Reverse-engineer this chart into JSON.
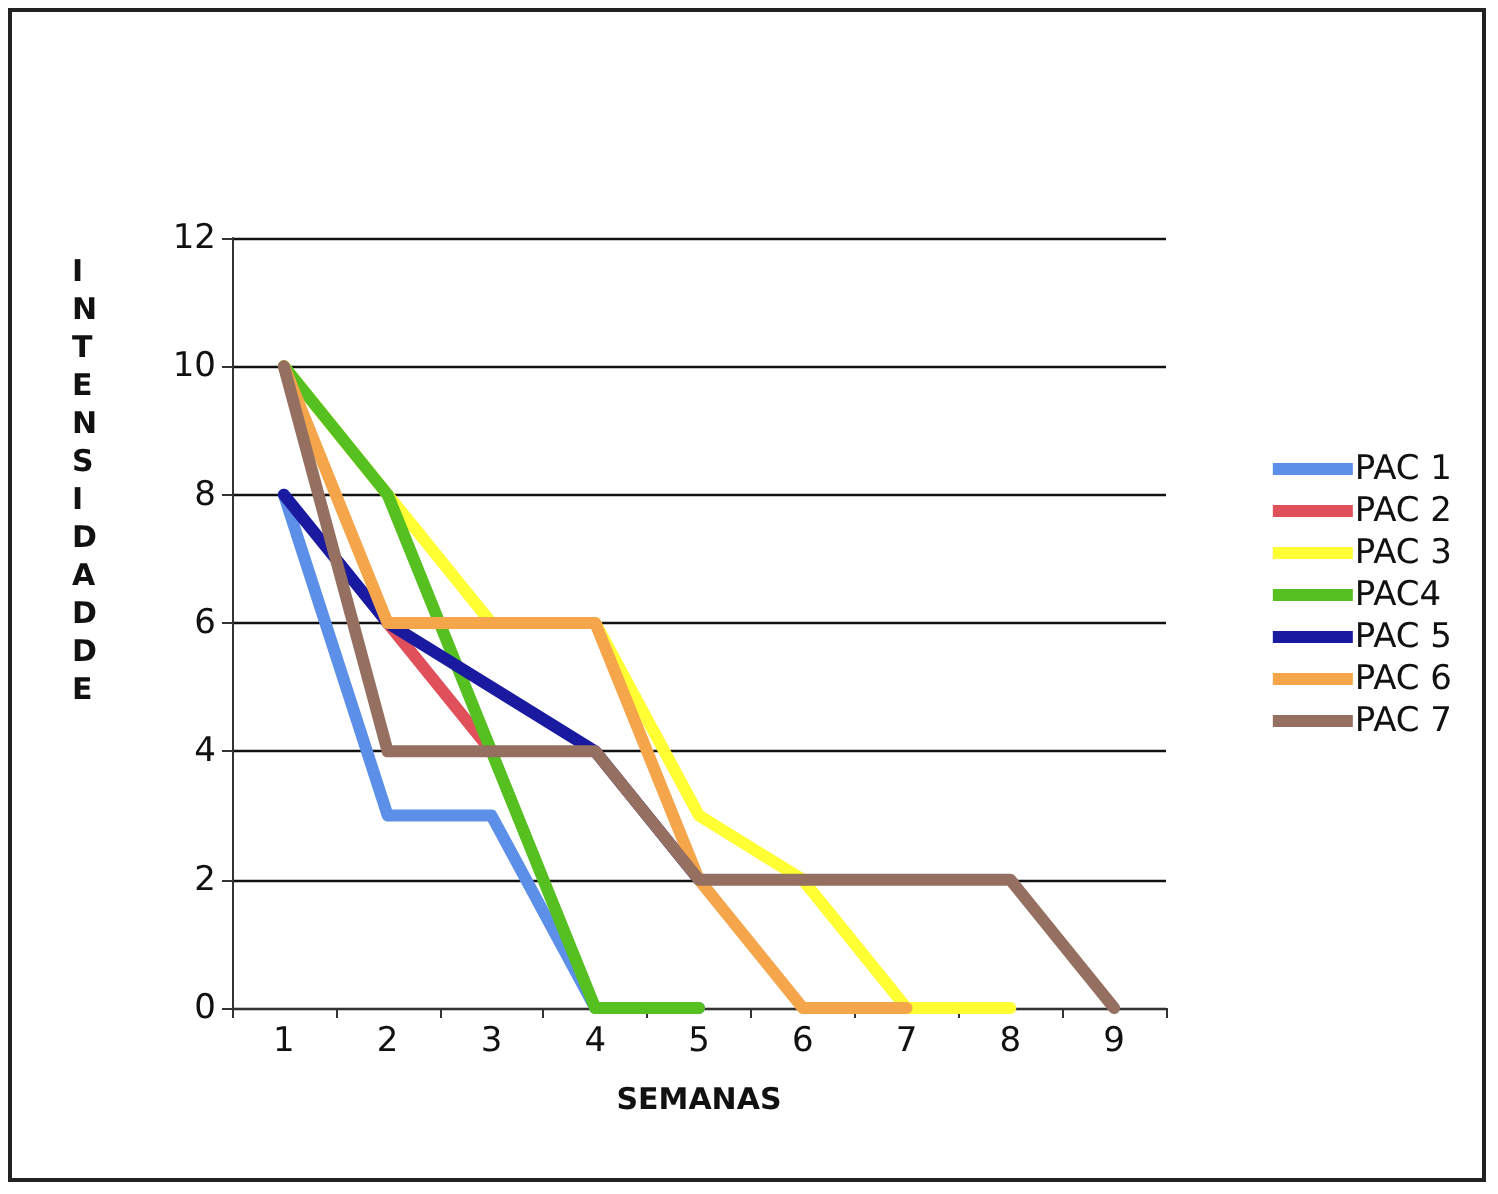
{
  "chart_data": {
    "type": "line",
    "xlabel": "SEMANAS",
    "ylabel": "INTENSIDADDE",
    "categories": [
      "1",
      "2",
      "3",
      "4",
      "5",
      "6",
      "7",
      "8",
      "9"
    ],
    "series": [
      {
        "name": "PAC 1",
        "color": "#5b8fe8",
        "values": [
          8,
          3,
          3,
          0,
          0,
          null,
          null,
          null,
          null
        ]
      },
      {
        "name": "PAC 2",
        "color": "#e0505a",
        "values": [
          null,
          6,
          4,
          null,
          null,
          null,
          null,
          null,
          null
        ]
      },
      {
        "name": "PAC 3",
        "color": "#ffff33",
        "values": [
          10,
          8,
          6,
          6,
          3,
          2,
          0,
          0,
          null
        ]
      },
      {
        "name": "PAC4",
        "color": "#55c020",
        "values": [
          10,
          8,
          4,
          0,
          0,
          null,
          null,
          null,
          null
        ]
      },
      {
        "name": "PAC 5",
        "color": "#1a1aa0",
        "values": [
          8,
          6,
          5,
          4,
          2,
          null,
          null,
          null,
          null
        ]
      },
      {
        "name": "PAC 6",
        "color": "#f5a54a",
        "values": [
          10,
          6,
          6,
          6,
          2,
          0,
          0,
          null,
          null
        ]
      },
      {
        "name": "PAC 7",
        "color": "#957060",
        "values": [
          10,
          4,
          4,
          4,
          2,
          2,
          2,
          2,
          0
        ]
      }
    ],
    "ylim": [
      0,
      12
    ],
    "yticks": [
      0,
      2,
      4,
      6,
      8,
      10,
      12
    ],
    "grid": "y",
    "legend": "right",
    "marker": "none",
    "line_style": "solid"
  }
}
